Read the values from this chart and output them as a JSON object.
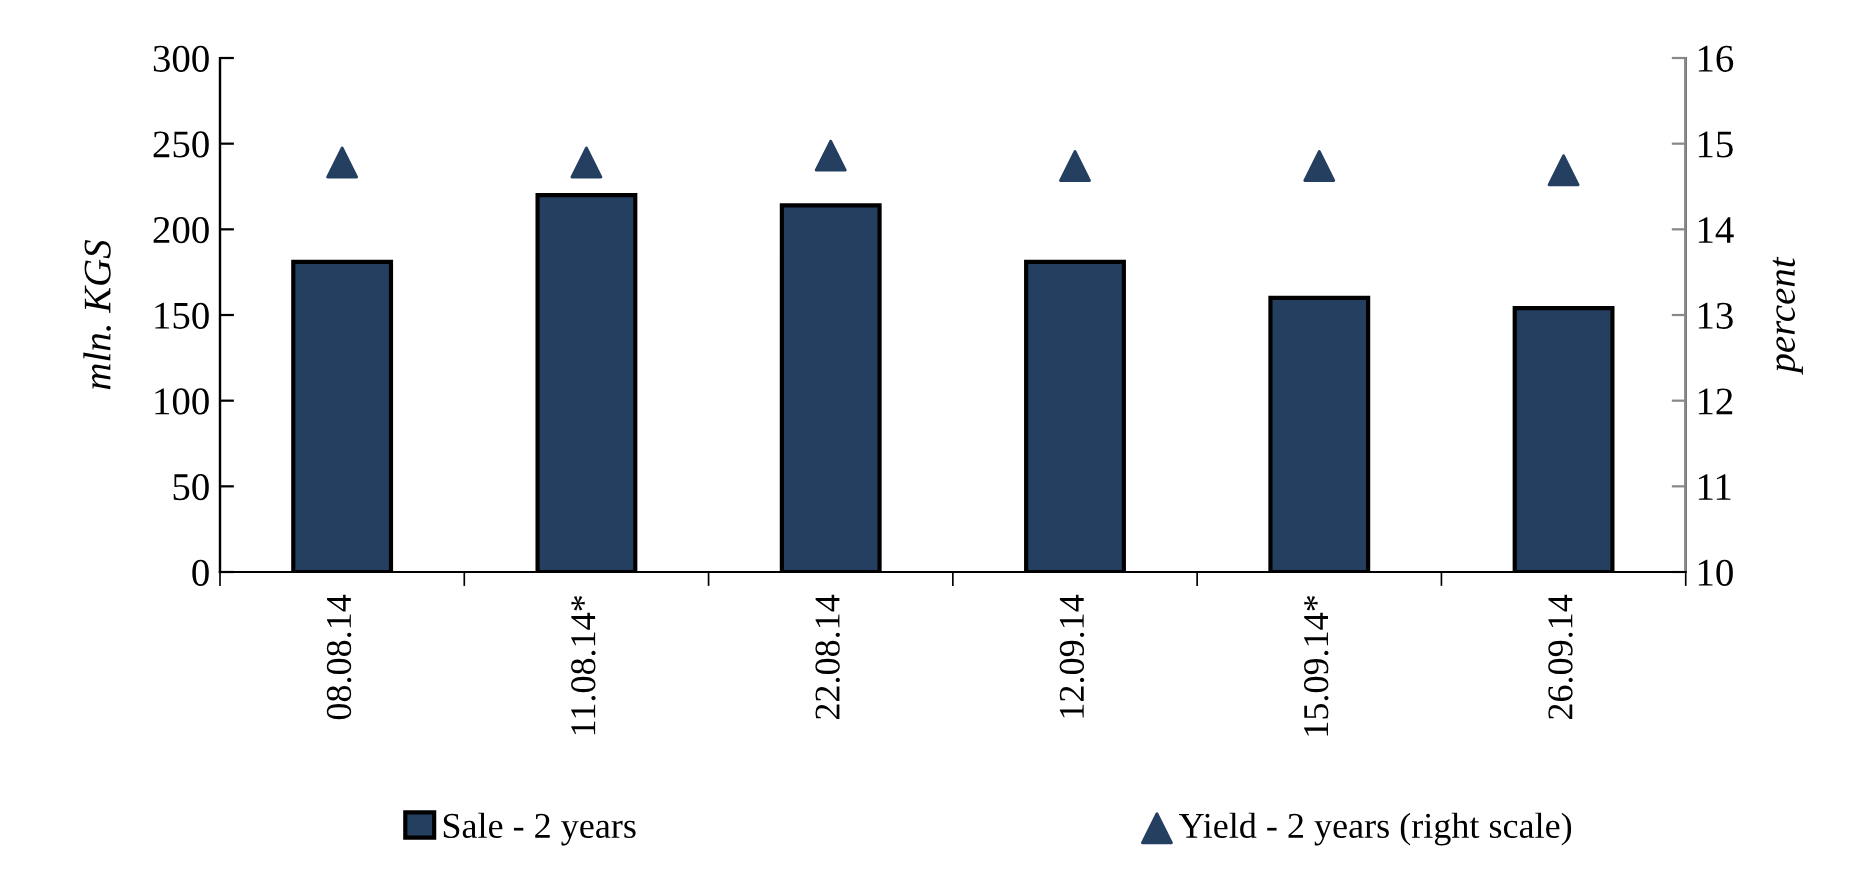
{
  "chart_data": {
    "type": "bar",
    "categories": [
      "08.08.14",
      "11.08.14*",
      "22.08.14",
      "12.09.14",
      "15.09.14*",
      "26.09.14"
    ],
    "ylabel": "mln. KGS",
    "y2label": "percent",
    "series": [
      {
        "name": "Sale - 2 years",
        "color": "#243f60",
        "values": [
          181,
          220,
          214,
          181,
          160,
          154
        ]
      },
      {
        "name": "Yield - 2 years (right scale)",
        "type": "scatter",
        "axis": "y2",
        "marker": "triangle",
        "color": "#243f60",
        "values": [
          14.78,
          14.78,
          14.86,
          14.74,
          14.74,
          14.69
        ]
      }
    ],
    "ylim": [
      0,
      300
    ],
    "yticks": [
      0,
      50,
      100,
      150,
      200,
      250,
      300
    ],
    "y2lim": [
      10,
      16
    ],
    "y2ticks": [
      10,
      11,
      12,
      13,
      14,
      15,
      16
    ],
    "grid": false,
    "legend": "bottom"
  }
}
